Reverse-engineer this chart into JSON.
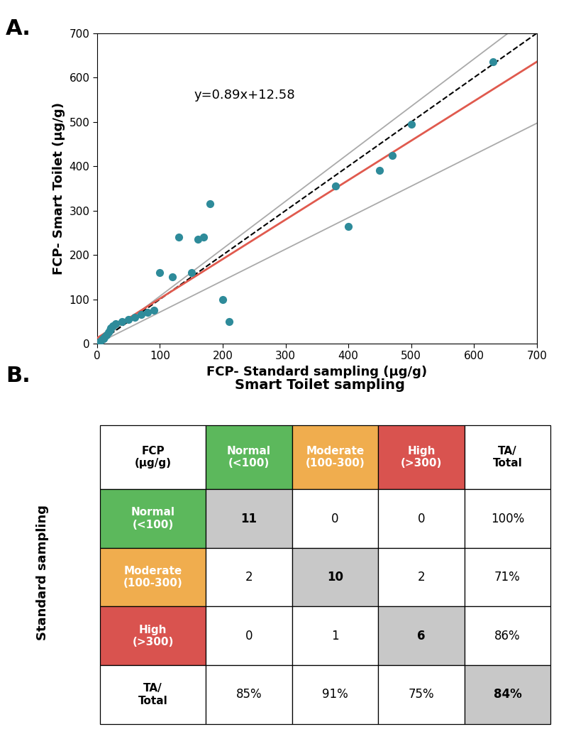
{
  "scatter_x": [
    5,
    8,
    10,
    12,
    15,
    18,
    20,
    22,
    25,
    30,
    40,
    50,
    60,
    70,
    80,
    90,
    100,
    120,
    130,
    150,
    160,
    170,
    180,
    200,
    210,
    380,
    400,
    450,
    470,
    500,
    630
  ],
  "scatter_y": [
    5,
    10,
    12,
    15,
    20,
    25,
    30,
    35,
    40,
    45,
    50,
    55,
    60,
    65,
    70,
    75,
    160,
    150,
    240,
    160,
    235,
    240,
    315,
    100,
    50,
    355,
    265,
    390,
    425,
    495,
    635
  ],
  "scatter_color": "#2e8b9a",
  "scatter_size": 65,
  "reg_slope": 0.89,
  "reg_intercept": 12.58,
  "ci_upper_slope": 1.07,
  "ci_upper_intercept": 0,
  "ci_lower_slope": 0.71,
  "ci_lower_intercept": 0,
  "identity_color": "black",
  "reg_color": "#e05a4e",
  "ci_color": "#aaaaaa",
  "xmin": 0,
  "xmax": 700,
  "ymin": 0,
  "ymax": 700,
  "xticks": [
    0,
    100,
    200,
    300,
    400,
    500,
    600,
    700
  ],
  "yticks": [
    0,
    100,
    200,
    300,
    400,
    500,
    600,
    700
  ],
  "xlabel": "FCP- Standard sampling (μg/g)",
  "ylabel": "FCP- Smart Toilet (μg/g)",
  "equation_text": "y=0.89x+12.58",
  "label_A": "A.",
  "label_B": "B.",
  "table_title": "Smart Toilet sampling",
  "row_label": "Standard sampling",
  "col_header_labels": [
    "FCP\n(μg/g)",
    "Normal\n(<100)",
    "Moderate\n(100-300)",
    "High\n(>300)",
    "TA/\nTotal"
  ],
  "col_header_colors": [
    "white",
    "#5cb85c",
    "#f0ad4e",
    "#d9534f",
    "white"
  ],
  "col_header_text_colors": [
    "black",
    "white",
    "white",
    "white",
    "black"
  ],
  "row_header_labels": [
    "Normal\n(<100)",
    "Moderate\n(100-300)",
    "High\n(>300)",
    "TA/\nTotal"
  ],
  "row_header_colors": [
    "#5cb85c",
    "#f0ad4e",
    "#d9534f",
    "white"
  ],
  "row_header_text_colors": [
    "white",
    "white",
    "white",
    "black"
  ],
  "cell_data": [
    [
      "11",
      "0",
      "0",
      "100%"
    ],
    [
      "2",
      "10",
      "2",
      "71%"
    ],
    [
      "0",
      "1",
      "6",
      "86%"
    ],
    [
      "85%",
      "91%",
      "75%",
      "84%"
    ]
  ],
  "diagonal_cells": [
    [
      0,
      0
    ],
    [
      1,
      1
    ],
    [
      2,
      2
    ],
    [
      3,
      3
    ]
  ],
  "diagonal_bg": "#c8c8c8",
  "normal_bg": "white"
}
